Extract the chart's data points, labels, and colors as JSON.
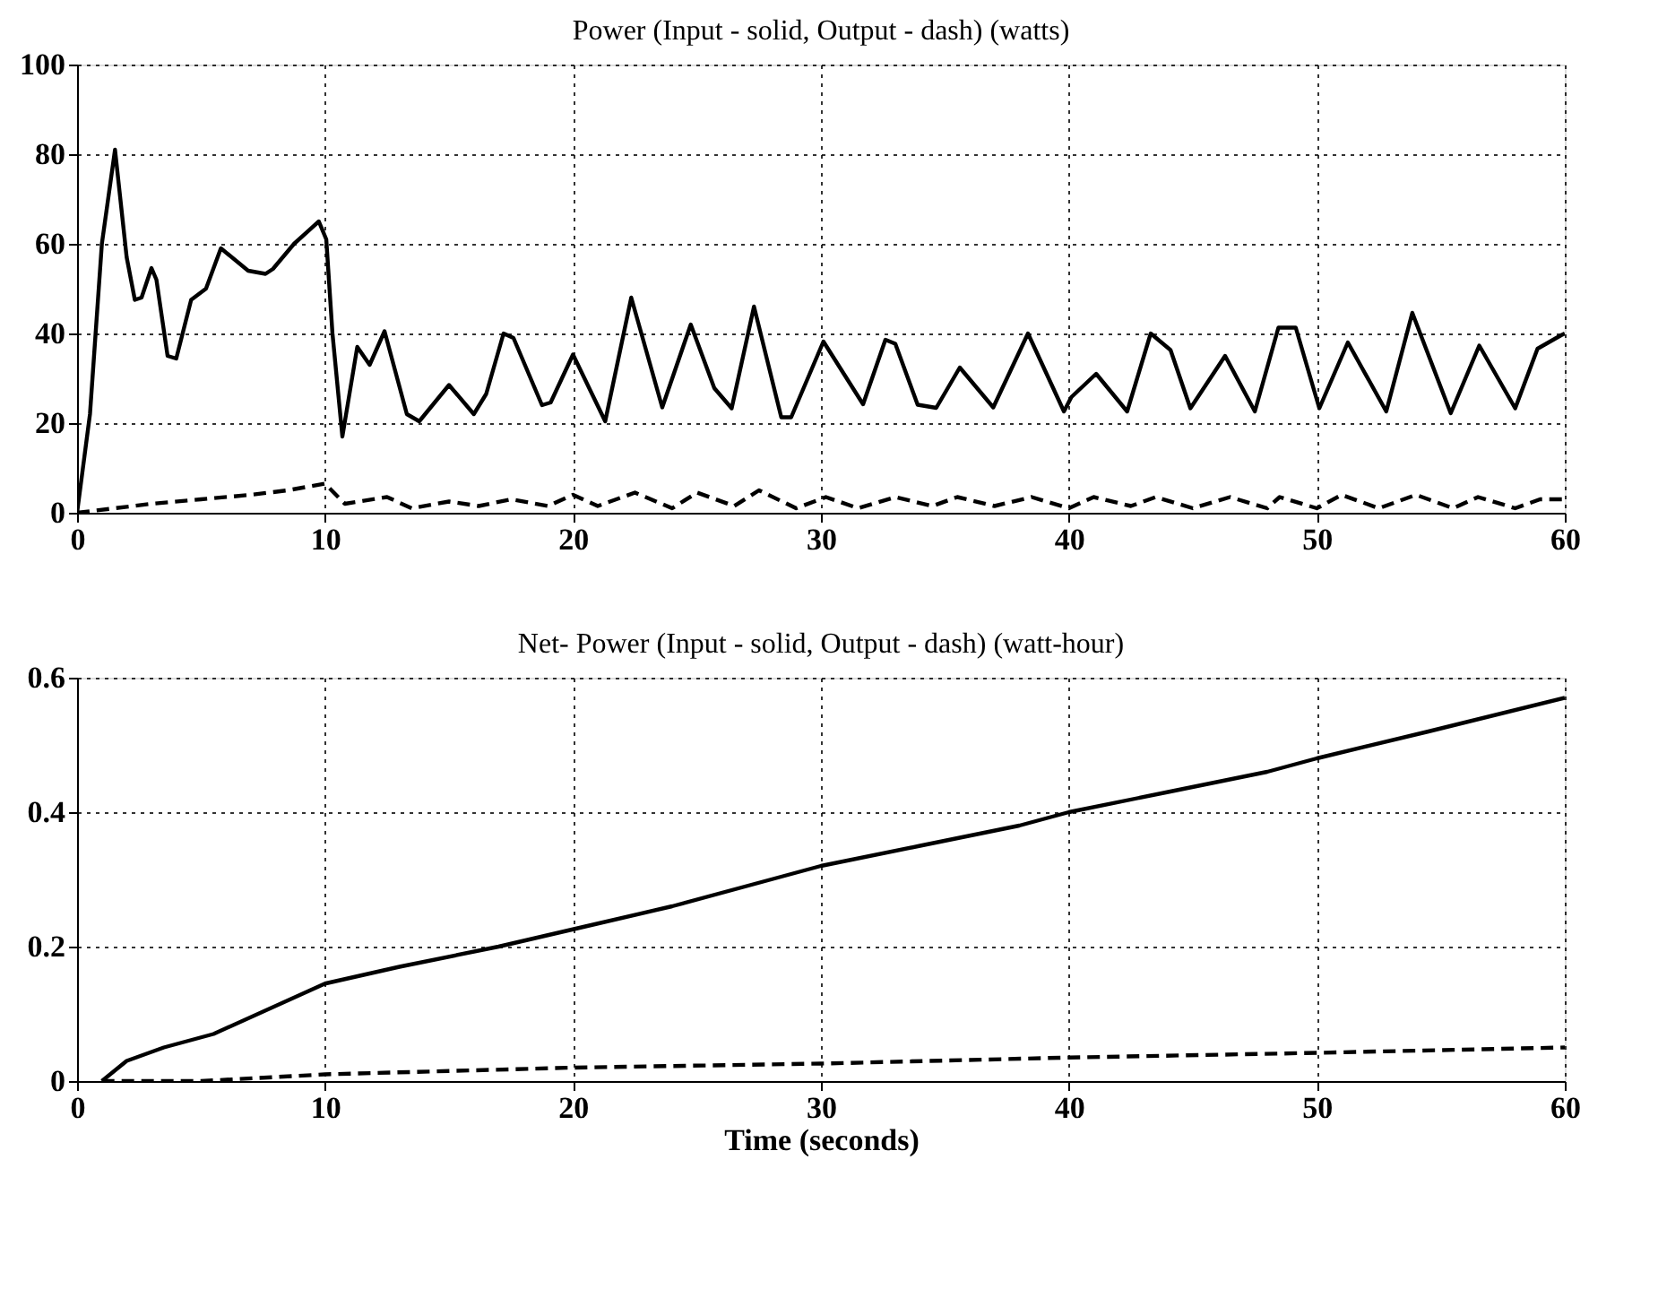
{
  "chart_data": [
    {
      "type": "line",
      "title": "Power (Input - solid, Output - dash) (watts)",
      "xlim": [
        0,
        60
      ],
      "xticks": [
        0,
        10,
        20,
        30,
        40,
        50,
        60
      ],
      "ylim": [
        0,
        100
      ],
      "yticks": [
        0,
        20,
        40,
        60,
        80,
        100
      ],
      "grid": true,
      "series": [
        {
          "color": "#000000",
          "line_style": "solid",
          "x": [
            0,
            0.52,
            1.0,
            1.53,
            2.0,
            2.33,
            2.6,
            3.0,
            3.2,
            3.65,
            4.0,
            4.6,
            5.2,
            5.8,
            6.9,
            7.6,
            7.9,
            8.75,
            9.75,
            10.05,
            10.3,
            10.7,
            11.3,
            11.8,
            12.4,
            13.3,
            13.8,
            15.0,
            16.0,
            16.5,
            17.2,
            17.6,
            18.75,
            19.1,
            20.0,
            21.3,
            22.35,
            23.6,
            24.75,
            25.7,
            26.4,
            27.3,
            28.4,
            28.8,
            30.1,
            31.7,
            32.6,
            33.0,
            33.9,
            34.65,
            35.6,
            36.95,
            38.35,
            39.8,
            40.1,
            41.1,
            42.35,
            43.3,
            44.1,
            44.9,
            46.3,
            47.5,
            48.45,
            49.15,
            50.1,
            51.25,
            52.8,
            53.85,
            55.4,
            56.55,
            58.0,
            58.9,
            59.85,
            60
          ],
          "values": [
            0,
            22,
            60,
            81,
            57,
            47.5,
            48,
            54.6,
            52,
            35,
            34.4,
            47.5,
            50,
            59,
            54,
            53.3,
            54.4,
            60,
            65,
            61,
            40,
            17,
            37,
            33,
            40.5,
            22,
            20.4,
            28.5,
            22,
            26.5,
            40,
            39,
            24,
            24.6,
            35.3,
            20.4,
            48,
            23.5,
            42,
            27.8,
            23.3,
            46,
            21.3,
            21.3,
            38.2,
            24.2,
            38.6,
            37.7,
            24.1,
            23.4,
            32.4,
            23.5,
            40,
            22.6,
            25.8,
            31,
            22.6,
            40,
            36.3,
            23.3,
            35,
            22.6,
            41.3,
            41.3,
            23.3,
            38,
            22.6,
            44.6,
            22.2,
            37.3,
            23.3,
            36.6,
            39.6,
            40
          ]
        },
        {
          "color": "#000000",
          "line_style": "dashed",
          "x": [
            0,
            1.5,
            3,
            5,
            7,
            8.5,
            10,
            10.8,
            12.5,
            13.5,
            15,
            16.2,
            17.5,
            19,
            20,
            21,
            22.5,
            24,
            25,
            26.5,
            27.5,
            29,
            30.2,
            31.5,
            33,
            34.5,
            35.5,
            37,
            38.5,
            40,
            41,
            42.5,
            43.5,
            45,
            46.5,
            48,
            48.5,
            50,
            51,
            52.5,
            54,
            55.5,
            56.5,
            58,
            59,
            60
          ],
          "values": [
            0,
            1,
            2,
            3,
            4,
            5,
            6.5,
            2,
            3.5,
            1,
            2.5,
            1.5,
            3,
            1.5,
            4,
            1.5,
            4.5,
            1,
            4.5,
            1.5,
            5,
            1,
            3.5,
            1,
            3.5,
            1.5,
            3.5,
            1.5,
            3.5,
            1,
            3.5,
            1.5,
            3.5,
            1,
            3.5,
            1,
            3.5,
            1,
            4,
            1,
            4,
            1,
            3.5,
            1,
            3,
            3
          ]
        }
      ]
    },
    {
      "type": "line",
      "title": "Net- Power (Input - solid, Output - dash) (watt-hour)",
      "xlabel": "Time (seconds)",
      "xlim": [
        0,
        60
      ],
      "xticks": [
        0,
        10,
        20,
        30,
        40,
        50,
        60
      ],
      "ylim": [
        0,
        0.6
      ],
      "yticks": [
        0,
        0.2,
        0.4,
        0.6
      ],
      "grid": true,
      "series": [
        {
          "color": "#000000",
          "line_style": "solid",
          "x": [
            1,
            2,
            3.5,
            5.5,
            10,
            13,
            17,
            20.5,
            24,
            28,
            30,
            34,
            38,
            40,
            44,
            48,
            50,
            54.5,
            60
          ],
          "values": [
            0,
            0.03,
            0.05,
            0.07,
            0.145,
            0.17,
            0.2,
            0.23,
            0.26,
            0.3,
            0.32,
            0.35,
            0.38,
            0.4,
            0.43,
            0.46,
            0.48,
            0.52,
            0.57
          ]
        },
        {
          "color": "#000000",
          "line_style": "dashed",
          "x": [
            1,
            5,
            10,
            20,
            30,
            40,
            50,
            60
          ],
          "values": [
            0,
            0,
            0.01,
            0.02,
            0.026,
            0.035,
            0.042,
            0.05
          ]
        }
      ]
    }
  ]
}
